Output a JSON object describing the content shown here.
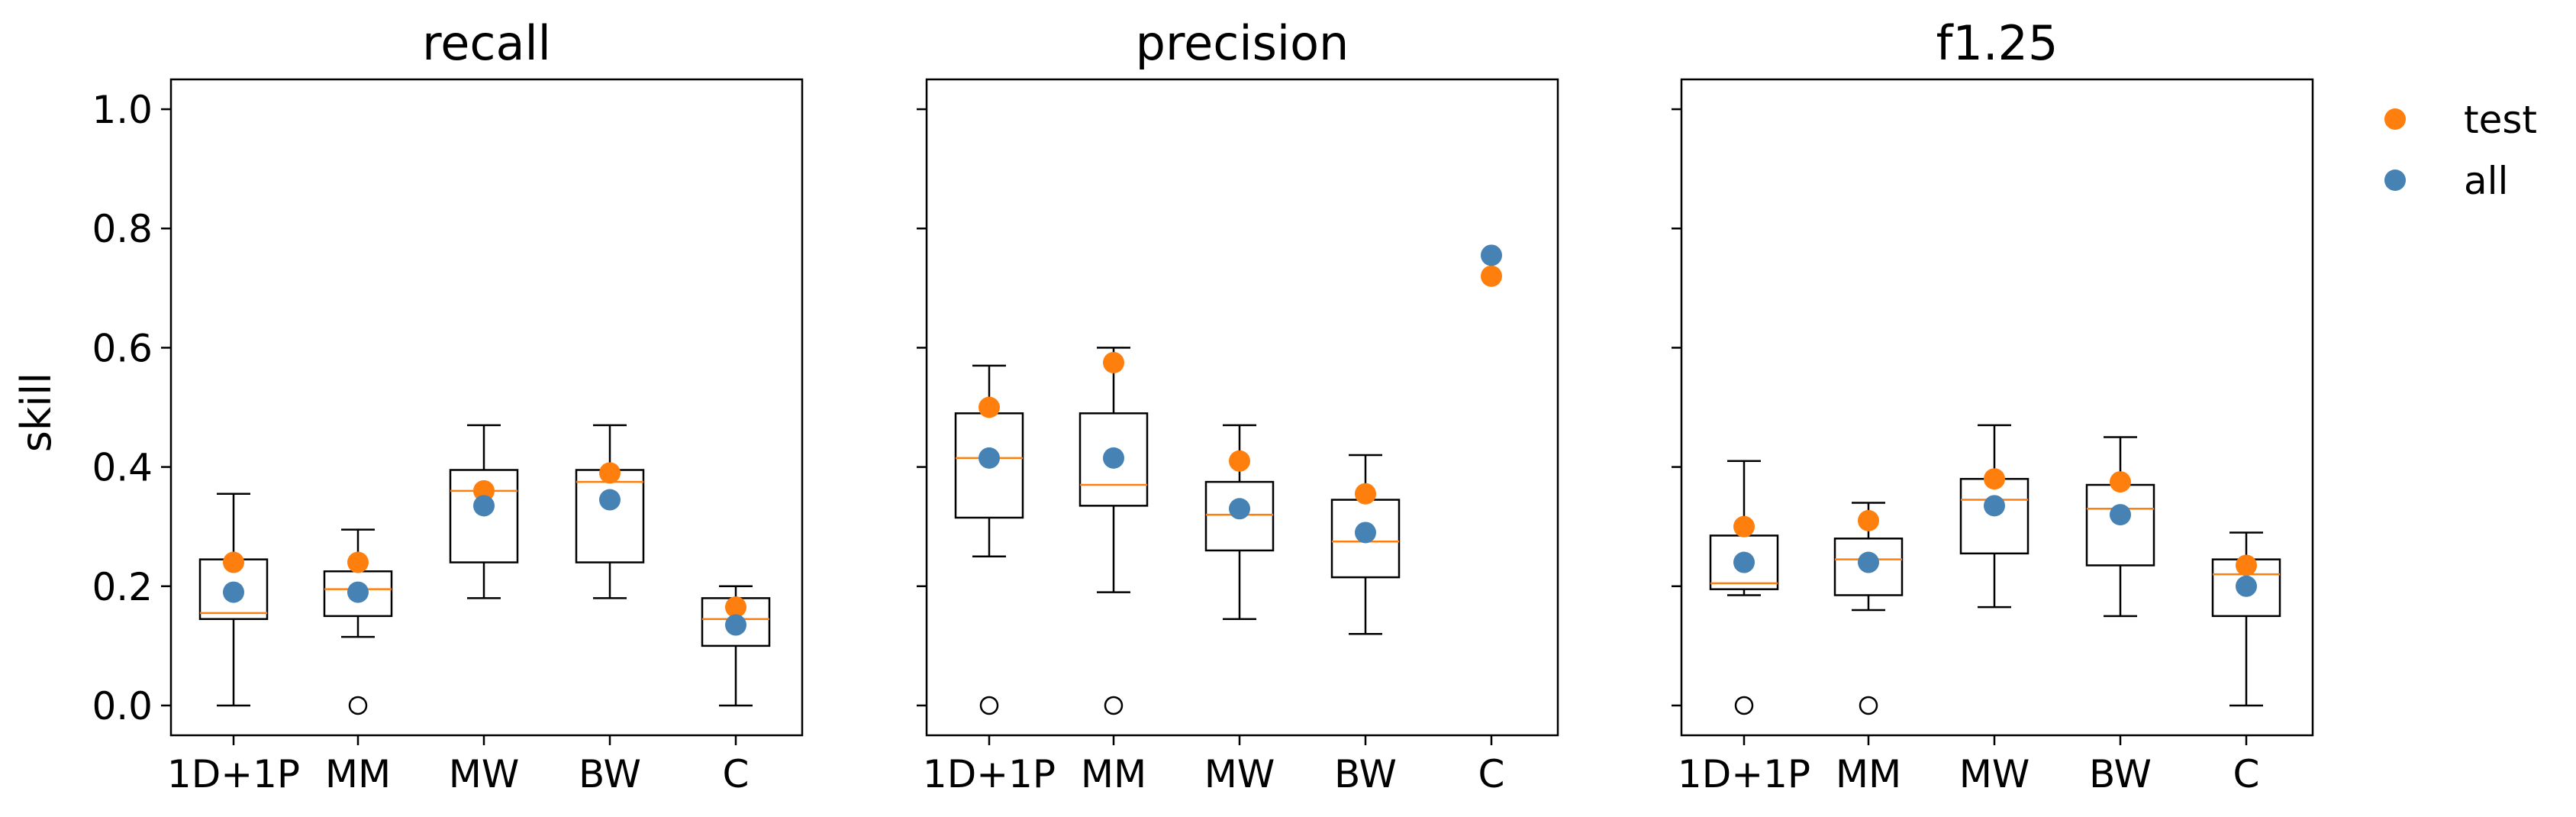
{
  "chart_data": {
    "type": "box",
    "ylabel": "skill",
    "ylim": [
      -0.05,
      1.05
    ],
    "yticks": [
      {
        "value": 0.0,
        "label": "0.0"
      },
      {
        "value": 0.2,
        "label": "0.2"
      },
      {
        "value": 0.4,
        "label": "0.4"
      },
      {
        "value": 0.6,
        "label": "0.6"
      },
      {
        "value": 0.8,
        "label": "0.8"
      },
      {
        "value": 1.0,
        "label": "1.0"
      }
    ],
    "categories": [
      "1D+1P",
      "MM",
      "MW",
      "BW",
      "C"
    ],
    "legend": {
      "placement": "top-right, outside plots",
      "entries": [
        {
          "key": "test",
          "label": "test",
          "color": "#ff7f0e"
        },
        {
          "key": "all",
          "label": "all",
          "color": "#4682b4"
        }
      ]
    },
    "colors": {
      "median": "#ff7f0e",
      "test": "#ff7f0e",
      "all": "#4682b4",
      "box": "#000000"
    },
    "panels": [
      {
        "title": "recall",
        "show_ytick_labels": true,
        "boxes": [
          {
            "category": "1D+1P",
            "whislo": 0.0,
            "q1": 0.145,
            "median": 0.155,
            "q3": 0.245,
            "whishi": 0.355,
            "fliers": [],
            "test": 0.24,
            "all": 0.19
          },
          {
            "category": "MM",
            "whislo": 0.115,
            "q1": 0.15,
            "median": 0.195,
            "q3": 0.225,
            "whishi": 0.295,
            "fliers": [
              0.0
            ],
            "test": 0.24,
            "all": 0.19
          },
          {
            "category": "MW",
            "whislo": 0.18,
            "q1": 0.24,
            "median": 0.36,
            "q3": 0.395,
            "whishi": 0.47,
            "fliers": [],
            "test": 0.36,
            "all": 0.335
          },
          {
            "category": "BW",
            "whislo": 0.18,
            "q1": 0.24,
            "median": 0.375,
            "q3": 0.395,
            "whishi": 0.47,
            "fliers": [],
            "test": 0.39,
            "all": 0.345
          },
          {
            "category": "C",
            "whislo": 0.0,
            "q1": 0.1,
            "median": 0.145,
            "q3": 0.18,
            "whishi": 0.2,
            "fliers": [],
            "test": 0.165,
            "all": 0.135
          }
        ]
      },
      {
        "title": "precision",
        "show_ytick_labels": false,
        "boxes": [
          {
            "category": "1D+1P",
            "whislo": 0.25,
            "q1": 0.315,
            "median": 0.415,
            "q3": 0.49,
            "whishi": 0.57,
            "fliers": [
              0.0
            ],
            "test": 0.5,
            "all": 0.415
          },
          {
            "category": "MM",
            "whislo": 0.19,
            "q1": 0.335,
            "median": 0.37,
            "q3": 0.49,
            "whishi": 0.6,
            "fliers": [
              0.0
            ],
            "test": 0.575,
            "all": 0.415
          },
          {
            "category": "MW",
            "whislo": 0.145,
            "q1": 0.26,
            "median": 0.32,
            "q3": 0.375,
            "whishi": 0.47,
            "fliers": [],
            "test": 0.41,
            "all": 0.33
          },
          {
            "category": "BW",
            "whislo": 0.12,
            "q1": 0.215,
            "median": 0.275,
            "q3": 0.345,
            "whishi": 0.42,
            "fliers": [],
            "test": 0.355,
            "all": 0.29
          },
          {
            "category": "C",
            "whislo": null,
            "q1": null,
            "median": null,
            "q3": null,
            "whishi": null,
            "fliers": [],
            "test": 0.72,
            "all": 0.755
          }
        ]
      },
      {
        "title": "f1.25",
        "show_ytick_labels": false,
        "boxes": [
          {
            "category": "1D+1P",
            "whislo": 0.185,
            "q1": 0.195,
            "median": 0.205,
            "q3": 0.285,
            "whishi": 0.41,
            "fliers": [
              0.0
            ],
            "test": 0.3,
            "all": 0.24
          },
          {
            "category": "MM",
            "whislo": 0.16,
            "q1": 0.185,
            "median": 0.245,
            "q3": 0.28,
            "whishi": 0.34,
            "fliers": [
              0.0
            ],
            "test": 0.31,
            "all": 0.24
          },
          {
            "category": "MW",
            "whislo": 0.165,
            "q1": 0.255,
            "median": 0.345,
            "q3": 0.38,
            "whishi": 0.47,
            "fliers": [],
            "test": 0.38,
            "all": 0.335
          },
          {
            "category": "BW",
            "whislo": 0.15,
            "q1": 0.235,
            "median": 0.33,
            "q3": 0.37,
            "whishi": 0.45,
            "fliers": [],
            "test": 0.375,
            "all": 0.32
          },
          {
            "category": "C",
            "whislo": 0.0,
            "q1": 0.15,
            "median": 0.22,
            "q3": 0.245,
            "whishi": 0.29,
            "fliers": [],
            "test": 0.235,
            "all": 0.2
          }
        ]
      }
    ]
  }
}
